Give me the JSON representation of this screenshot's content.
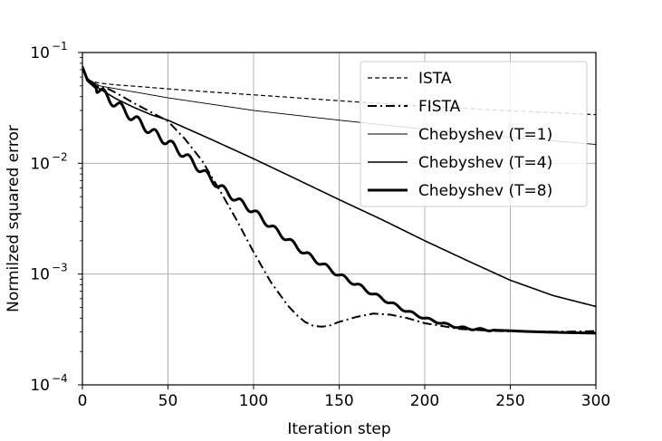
{
  "chart_data": {
    "type": "line",
    "xlabel": "Iteration step",
    "ylabel": "Normilzed squared  error",
    "xlim": [
      0,
      300
    ],
    "ylim": [
      0.0001,
      0.1
    ],
    "yscale": "log",
    "grid": true,
    "legend_position": "top-right",
    "x_ticks": [
      {
        "value": 0,
        "label": "0"
      },
      {
        "value": 50,
        "label": "50"
      },
      {
        "value": 100,
        "label": "100"
      },
      {
        "value": 150,
        "label": "150"
      },
      {
        "value": 200,
        "label": "200"
      },
      {
        "value": 250,
        "label": "250"
      },
      {
        "value": 300,
        "label": "300"
      }
    ],
    "y_ticks": [
      {
        "value": 0.1,
        "base": "10",
        "exp": "−1"
      },
      {
        "value": 0.01,
        "base": "10",
        "exp": "−2"
      },
      {
        "value": 0.001,
        "base": "10",
        "exp": "−3"
      },
      {
        "value": 0.0001,
        "base": "10",
        "exp": "−4"
      }
    ],
    "series": [
      {
        "name": "ISTA",
        "style": "dashed",
        "color": "#000000",
        "x": [
          0,
          2,
          5,
          10,
          20,
          30,
          50,
          75,
          100,
          150,
          200,
          250,
          300
        ],
        "y": [
          0.075,
          0.06,
          0.055,
          0.053,
          0.051,
          0.0497,
          0.047,
          0.044,
          0.0415,
          0.0367,
          0.0327,
          0.0298,
          0.0275
        ]
      },
      {
        "name": "FISTA",
        "style": "dashdot",
        "color": "#000000",
        "x": [
          0,
          3,
          8,
          15,
          20,
          30,
          40,
          50,
          60,
          70,
          80,
          90,
          100,
          110,
          120,
          125,
          130,
          135,
          140,
          145,
          150,
          160,
          170,
          180,
          190,
          200,
          210,
          220,
          230,
          240,
          250,
          260,
          270,
          280,
          290,
          300
        ],
        "y": [
          0.075,
          0.058,
          0.05,
          0.047,
          0.043,
          0.035,
          0.029,
          0.024,
          0.0165,
          0.0105,
          0.0058,
          0.0031,
          0.00158,
          0.00085,
          0.00052,
          0.00043,
          0.00037,
          0.00034,
          0.000335,
          0.000345,
          0.00037,
          0.00041,
          0.00044,
          0.00043,
          0.0004,
          0.00036,
          0.00034,
          0.00032,
          0.000313,
          0.000307,
          0.000304,
          0.000302,
          0.000302,
          0.000302,
          0.000303,
          0.000306
        ]
      },
      {
        "name": "Chebyshev (T=1)",
        "style": "solid-thin",
        "color": "#000000",
        "x": [
          0,
          3,
          10,
          20,
          50,
          100,
          150,
          200,
          250,
          300
        ],
        "y": [
          0.073,
          0.058,
          0.05,
          0.047,
          0.039,
          0.03,
          0.0245,
          0.0203,
          0.0172,
          0.0148
        ]
      },
      {
        "name": "Chebyshev (T=4)",
        "style": "solid",
        "color": "#000000",
        "x": [
          0,
          3,
          10,
          20,
          30,
          40,
          50,
          75,
          100,
          125,
          150,
          175,
          200,
          225,
          250,
          275,
          300
        ],
        "y": [
          0.073,
          0.058,
          0.047,
          0.038,
          0.032,
          0.0275,
          0.0245,
          0.0165,
          0.011,
          0.0072,
          0.0047,
          0.0031,
          0.002,
          0.00132,
          0.00088,
          0.00064,
          0.00051
        ]
      },
      {
        "name": "Chebyshev (T=8)",
        "style": "solid-thick",
        "color": "#000000",
        "x": [
          0,
          3,
          10,
          20,
          30,
          40,
          50,
          60,
          70,
          80,
          90,
          100,
          110,
          120,
          130,
          140,
          150,
          160,
          170,
          180,
          190,
          200,
          210,
          220,
          230,
          240,
          250,
          260,
          270,
          280,
          290,
          300
        ],
        "y": [
          0.074,
          0.056,
          0.045,
          0.034,
          0.0255,
          0.0195,
          0.0155,
          0.0118,
          0.0085,
          0.0062,
          0.0047,
          0.0037,
          0.0027,
          0.00205,
          0.00155,
          0.00123,
          0.00098,
          0.00081,
          0.00066,
          0.00055,
          0.00046,
          0.0004,
          0.00036,
          0.00033,
          0.000318,
          0.000312,
          0.000308,
          0.000303,
          0.0003,
          0.000297,
          0.000295,
          0.000293
        ]
      }
    ]
  }
}
